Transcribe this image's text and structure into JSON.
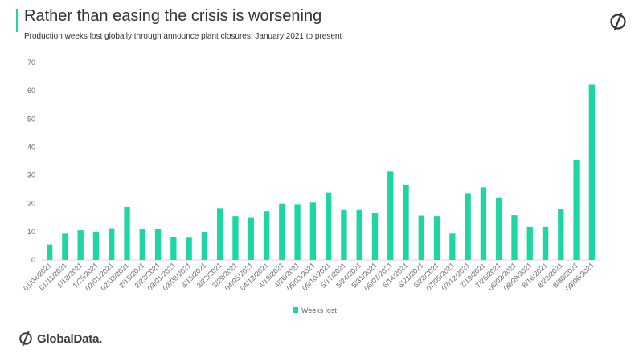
{
  "header": {
    "title": "Rather than easing the crisis is worsening",
    "subtitle": "Production weeks lost globally through announce plant closures: January 2021  to present",
    "accent_color": "#1dd6a3",
    "brand_icon": "globaldata-mark-icon"
  },
  "footer": {
    "logo_text": "GlobalData.",
    "logo_icon": "globaldata-logo-icon"
  },
  "chart_data": {
    "type": "bar",
    "title": "",
    "xlabel": "",
    "ylabel": "",
    "ylim": [
      0,
      70
    ],
    "yticks": [
      0,
      10,
      20,
      30,
      40,
      50,
      60,
      70
    ],
    "grid": false,
    "legend_position": "bottom-center",
    "bar_color": "#1dd6a3",
    "categories": [
      "01/04/2021",
      "01/11/2021",
      "1/18/2021",
      "1/25/2021",
      "02/01/2021",
      "02/08/2021",
      "2/15/2021",
      "2/22/2021",
      "03/01/2021",
      "03/08/2021",
      "3/15/2021",
      "3/22/2021",
      "3/29/2021",
      "04/05/2021",
      "04/12/2021",
      "4/19/2021",
      "4/26/2021",
      "05/03/2021",
      "05/10/2021",
      "5/17/2021",
      "5/24/2021",
      "5/31/2021",
      "06/07/2021",
      "6/14/2021",
      "6/21/2021",
      "6/28/2021",
      "07/05/2021",
      "07/12/2021",
      "7/19/2021",
      "7/26/2021",
      "08/02/2021",
      "08/09/2021",
      "8/16/2021",
      "8/23/2021",
      "8/30/2021",
      "09/06/2021"
    ],
    "series": [
      {
        "name": "Weeks lost",
        "values": [
          5.5,
          9.3,
          10.5,
          10.0,
          11.2,
          18.8,
          10.9,
          11.0,
          8.0,
          7.9,
          10.0,
          18.4,
          15.6,
          14.9,
          17.3,
          20.0,
          19.8,
          20.4,
          24.0,
          17.7,
          17.7,
          16.6,
          31.5,
          26.8,
          15.8,
          15.6,
          9.3,
          23.5,
          25.8,
          22.0,
          15.9,
          11.7,
          11.7,
          18.2,
          35.4,
          62.2
        ]
      }
    ]
  }
}
